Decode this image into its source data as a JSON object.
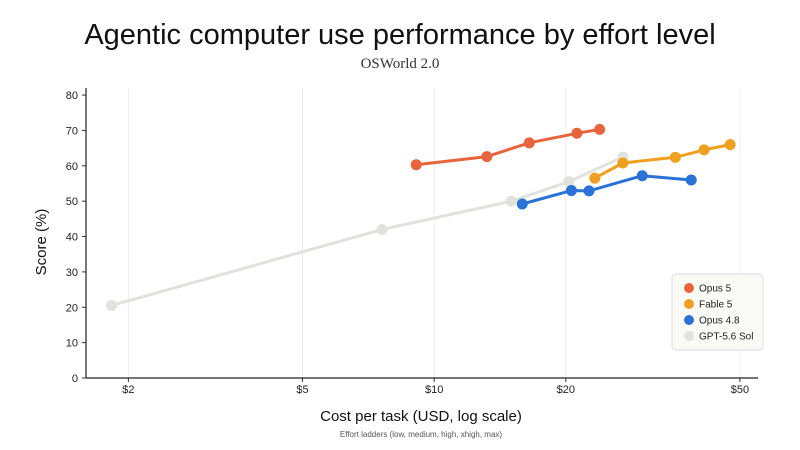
{
  "chart_data": {
    "type": "line",
    "title": "Agentic computer use performance by effort level",
    "subtitle": "OSWorld 2.0",
    "xlabel": "Cost per task (USD, log scale)",
    "ylabel": "Score (%)",
    "note": "Effort ladders (low, medium, high, xhigh, max)",
    "x_scale": "log",
    "xlim": [
      1.6,
      55
    ],
    "ylim": [
      0,
      82
    ],
    "x_ticks": [
      {
        "value": 2,
        "label": "$2"
      },
      {
        "value": 5,
        "label": "$5"
      },
      {
        "value": 10,
        "label": "$10"
      },
      {
        "value": 20,
        "label": "$20"
      },
      {
        "value": 50,
        "label": "$50"
      }
    ],
    "y_ticks": [
      0,
      10,
      20,
      30,
      40,
      50,
      60,
      70,
      80
    ],
    "grid": "vertical lines at x ticks",
    "legend_position": "bottom-right",
    "series": [
      {
        "name": "GPT-5.6 Sol",
        "color": "#e2e2dd",
        "points": [
          {
            "x": 1.83,
            "y": 20.5
          },
          {
            "x": 7.6,
            "y": 42.0
          },
          {
            "x": 15.0,
            "y": 50.0
          },
          {
            "x": 20.3,
            "y": 55.5
          },
          {
            "x": 27.0,
            "y": 62.5
          }
        ]
      },
      {
        "name": "Opus 5",
        "color": "#e8643c",
        "points": [
          {
            "x": 9.1,
            "y": 60.3
          },
          {
            "x": 13.2,
            "y": 62.6
          },
          {
            "x": 16.5,
            "y": 66.5
          },
          {
            "x": 21.2,
            "y": 69.2
          },
          {
            "x": 23.9,
            "y": 70.3
          }
        ]
      },
      {
        "name": "Fable 5",
        "color": "#f0a020",
        "points": [
          {
            "x": 23.3,
            "y": 56.5
          },
          {
            "x": 27.0,
            "y": 60.8
          },
          {
            "x": 35.6,
            "y": 62.4
          },
          {
            "x": 41.4,
            "y": 64.5
          },
          {
            "x": 47.5,
            "y": 66.0
          }
        ]
      },
      {
        "name": "Opus 4.8",
        "color": "#2b72d6",
        "points": [
          {
            "x": 15.9,
            "y": 49.2
          },
          {
            "x": 20.6,
            "y": 53.0
          },
          {
            "x": 22.6,
            "y": 52.9
          },
          {
            "x": 29.9,
            "y": 57.2
          },
          {
            "x": 38.7,
            "y": 56.0
          }
        ]
      }
    ],
    "legend_order": [
      "Opus 5",
      "Fable 5",
      "Opus 4.8",
      "GPT-5.6 Sol"
    ]
  }
}
